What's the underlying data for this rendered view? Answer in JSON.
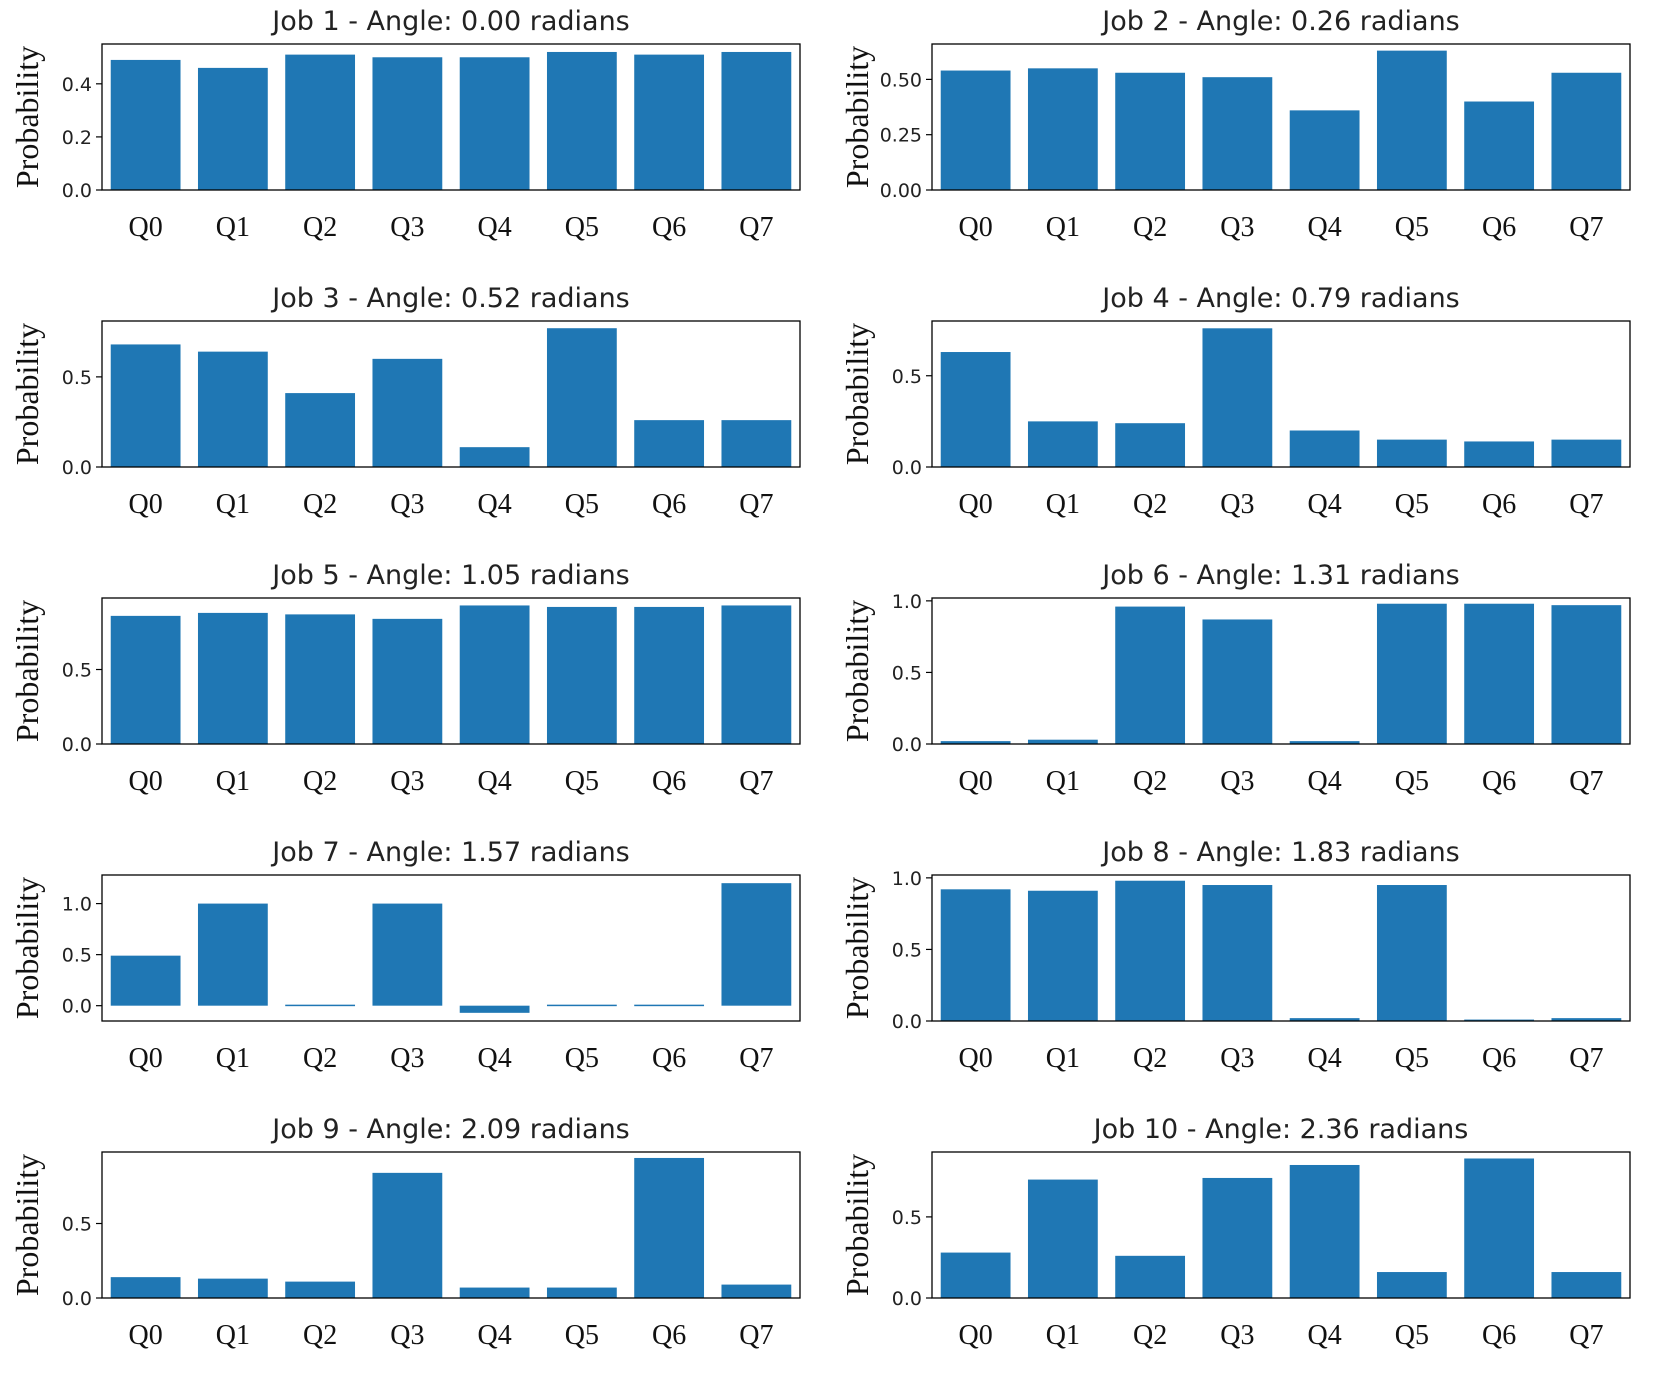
{
  "chart_data": [
    {
      "type": "bar",
      "title": "Job 1 - Angle: 0.00 radians",
      "ylabel": "Probability",
      "categories": [
        "Q0",
        "Q1",
        "Q2",
        "Q3",
        "Q4",
        "Q5",
        "Q6",
        "Q7"
      ],
      "values": [
        0.49,
        0.46,
        0.51,
        0.5,
        0.5,
        0.52,
        0.51,
        0.52
      ],
      "ylim": [
        0,
        0.55
      ],
      "yticks": [
        0.0,
        0.2,
        0.4
      ],
      "ytick_labels": [
        "0.0",
        "0.2",
        "0.4"
      ],
      "color": "#1f77b4"
    },
    {
      "type": "bar",
      "title": "Job 2 - Angle: 0.26 radians",
      "ylabel": "Probability",
      "categories": [
        "Q0",
        "Q1",
        "Q2",
        "Q3",
        "Q4",
        "Q5",
        "Q6",
        "Q7"
      ],
      "values": [
        0.54,
        0.55,
        0.53,
        0.51,
        0.36,
        0.63,
        0.4,
        0.53
      ],
      "ylim": [
        0,
        0.66
      ],
      "yticks": [
        0.0,
        0.25,
        0.5
      ],
      "ytick_labels": [
        "0.00",
        "0.25",
        "0.50"
      ],
      "color": "#1f77b4"
    },
    {
      "type": "bar",
      "title": "Job 3 - Angle: 0.52 radians",
      "ylabel": "Probability",
      "categories": [
        "Q0",
        "Q1",
        "Q2",
        "Q3",
        "Q4",
        "Q5",
        "Q6",
        "Q7"
      ],
      "values": [
        0.68,
        0.64,
        0.41,
        0.6,
        0.11,
        0.77,
        0.26,
        0.26
      ],
      "ylim": [
        0,
        0.81
      ],
      "yticks": [
        0.0,
        0.5
      ],
      "ytick_labels": [
        "0.0",
        "0.5"
      ],
      "color": "#1f77b4"
    },
    {
      "type": "bar",
      "title": "Job 4 - Angle: 0.79 radians",
      "ylabel": "Probability",
      "categories": [
        "Q0",
        "Q1",
        "Q2",
        "Q3",
        "Q4",
        "Q5",
        "Q6",
        "Q7"
      ],
      "values": [
        0.63,
        0.25,
        0.24,
        0.76,
        0.2,
        0.15,
        0.14,
        0.15
      ],
      "ylim": [
        0,
        0.8
      ],
      "yticks": [
        0.0,
        0.5
      ],
      "ytick_labels": [
        "0.0",
        "0.5"
      ],
      "color": "#1f77b4"
    },
    {
      "type": "bar",
      "title": "Job 5 - Angle: 1.05 radians",
      "ylabel": "Probability",
      "categories": [
        "Q0",
        "Q1",
        "Q2",
        "Q3",
        "Q4",
        "Q5",
        "Q6",
        "Q7"
      ],
      "values": [
        0.86,
        0.88,
        0.87,
        0.84,
        0.93,
        0.92,
        0.92,
        0.93
      ],
      "ylim": [
        0,
        0.98
      ],
      "yticks": [
        0.0,
        0.5
      ],
      "ytick_labels": [
        "0.0",
        "0.5"
      ],
      "color": "#1f77b4"
    },
    {
      "type": "bar",
      "title": "Job 6 - Angle: 1.31 radians",
      "ylabel": "Probability",
      "categories": [
        "Q0",
        "Q1",
        "Q2",
        "Q3",
        "Q4",
        "Q5",
        "Q6",
        "Q7"
      ],
      "values": [
        0.02,
        0.03,
        0.96,
        0.87,
        0.02,
        0.98,
        0.98,
        0.97
      ],
      "ylim": [
        0,
        1.02
      ],
      "yticks": [
        0.0,
        0.5,
        1.0
      ],
      "ytick_labels": [
        "0.0",
        "0.5",
        "1.0"
      ],
      "color": "#1f77b4"
    },
    {
      "type": "bar",
      "title": "Job 7 - Angle: 1.57 radians",
      "ylabel": "Probability",
      "categories": [
        "Q0",
        "Q1",
        "Q2",
        "Q3",
        "Q4",
        "Q5",
        "Q6",
        "Q7"
      ],
      "values": [
        0.49,
        1.0,
        0.01,
        1.0,
        -0.07,
        0.01,
        0.01,
        1.2
      ],
      "ylim": [
        -0.15,
        1.28
      ],
      "yticks": [
        0.0,
        0.5,
        1.0
      ],
      "ytick_labels": [
        "0.0",
        "0.5",
        "1.0"
      ],
      "color": "#1f77b4"
    },
    {
      "type": "bar",
      "title": "Job 8 - Angle: 1.83 radians",
      "ylabel": "Probability",
      "categories": [
        "Q0",
        "Q1",
        "Q2",
        "Q3",
        "Q4",
        "Q5",
        "Q6",
        "Q7"
      ],
      "values": [
        0.92,
        0.91,
        0.98,
        0.95,
        0.02,
        0.95,
        0.01,
        0.02
      ],
      "ylim": [
        0,
        1.02
      ],
      "yticks": [
        0.0,
        0.5,
        1.0
      ],
      "ytick_labels": [
        "0.0",
        "0.5",
        "1.0"
      ],
      "color": "#1f77b4"
    },
    {
      "type": "bar",
      "title": "Job 9 - Angle: 2.09 radians",
      "ylabel": "Probability",
      "categories": [
        "Q0",
        "Q1",
        "Q2",
        "Q3",
        "Q4",
        "Q5",
        "Q6",
        "Q7"
      ],
      "values": [
        0.14,
        0.13,
        0.11,
        0.84,
        0.07,
        0.07,
        0.94,
        0.09
      ],
      "ylim": [
        0,
        0.98
      ],
      "yticks": [
        0.0,
        0.5
      ],
      "ytick_labels": [
        "0.0",
        "0.5"
      ],
      "color": "#1f77b4"
    },
    {
      "type": "bar",
      "title": "Job 10 - Angle: 2.36 radians",
      "ylabel": "Probability",
      "categories": [
        "Q0",
        "Q1",
        "Q2",
        "Q3",
        "Q4",
        "Q5",
        "Q6",
        "Q7"
      ],
      "values": [
        0.28,
        0.73,
        0.26,
        0.74,
        0.82,
        0.16,
        0.86,
        0.16
      ],
      "ylim": [
        0,
        0.9
      ],
      "yticks": [
        0.0,
        0.5
      ],
      "ytick_labels": [
        "0.0",
        "0.5"
      ],
      "color": "#1f77b4"
    }
  ]
}
